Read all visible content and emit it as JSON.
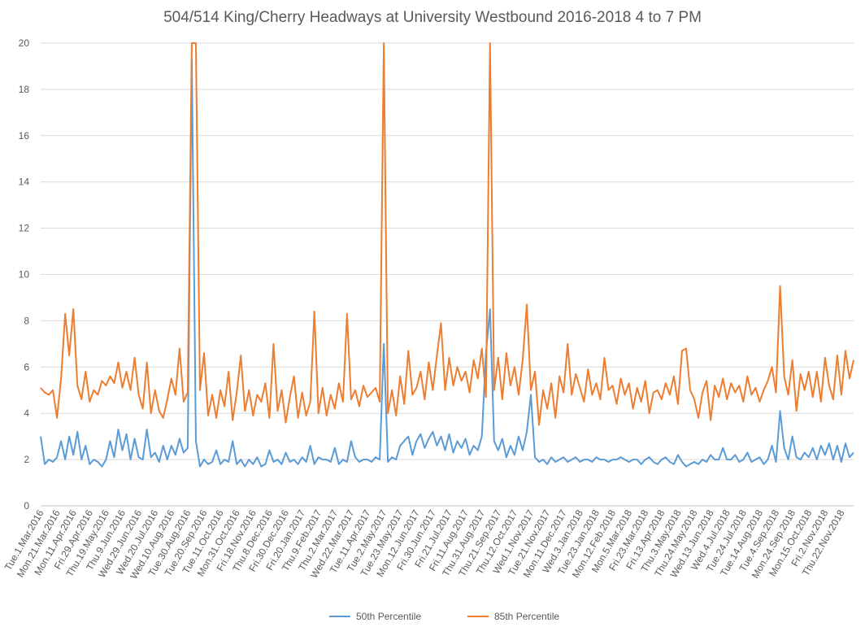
{
  "chart_data": {
    "type": "line",
    "title": "504/514 King/Cherry Headways at University Westbound 2016-2018 4 to 7 PM",
    "categories": [
      "Tue.1.Mar.2016",
      null,
      null,
      null,
      "Mon.21.Mar.2016",
      null,
      null,
      null,
      "Mon.11.Apr.2016",
      null,
      null,
      null,
      "Fri.29.Apr.2016",
      null,
      null,
      null,
      "Thu.19.May.2016",
      null,
      null,
      null,
      "Thu.9.Jun.2016",
      null,
      null,
      null,
      "Wed.29.Jun.2016",
      null,
      null,
      null,
      "Wed.20.Jul.2016",
      null,
      null,
      null,
      "Wed.10.Aug.2016",
      null,
      null,
      null,
      "Tue.30.Aug.2016",
      null,
      null,
      null,
      "Tue.20.Sep.2016",
      null,
      null,
      null,
      "Tue.11.Oct.2016",
      null,
      null,
      null,
      "Mon.31.Oct.2016",
      null,
      null,
      null,
      "Fri.18.Nov.2016",
      null,
      null,
      null,
      "Thu.8.Dec.2016",
      null,
      null,
      null,
      "Fri.30.Dec.2016",
      null,
      null,
      null,
      "Fri.20.Jan.2017",
      null,
      null,
      null,
      "Thu.9.Feb.2017",
      null,
      null,
      null,
      "Thu.2.Mar.2017",
      null,
      null,
      null,
      "Wed.22.Mar.2017",
      null,
      null,
      null,
      "Tue.11.Apr.2017",
      null,
      null,
      null,
      "Tue.2.May.2017",
      null,
      null,
      null,
      "Tue.23.May.2017",
      null,
      null,
      null,
      "Mon.12.Jun.2017",
      null,
      null,
      null,
      "Fri.30.Jun.2017",
      null,
      null,
      null,
      "Fri.21.Jul.2017",
      null,
      null,
      null,
      "Fri.11.Aug.2017",
      null,
      null,
      null,
      "Thu.31.Aug.2017",
      null,
      null,
      null,
      "Thu.21.Sep.2017",
      null,
      null,
      null,
      "Thu.12.Oct.2017",
      null,
      null,
      null,
      "Wed.1.Nov.2017",
      null,
      null,
      null,
      "Tue.21.Nov.2017",
      null,
      null,
      null,
      "Mon.11.Dec.2017",
      null,
      null,
      null,
      "Wed.3.Jan.2018",
      null,
      null,
      null,
      "Tue.23.Jan.2018",
      null,
      null,
      null,
      "Mon.12.Feb.2018",
      null,
      null,
      null,
      "Mon.5.Mar.2018",
      null,
      null,
      null,
      "Fri.23.Mar.2018",
      null,
      null,
      null,
      "Fri.13.Apr.2018",
      null,
      null,
      null,
      "Thu.3.May.2018",
      null,
      null,
      null,
      "Thu.24.May.2018",
      null,
      null,
      null,
      "Wed.13.Jun.2018",
      null,
      null,
      null,
      "Wed.4.Jul.2018",
      null,
      null,
      null,
      "Tue.24.Jul.2018",
      null,
      null,
      null,
      "Tue.14.Aug.2018",
      null,
      null,
      null,
      "Tue.4.Sep.2018",
      null,
      null,
      null,
      "Mon.24.Sep.2018",
      null,
      null,
      null,
      "Mon.15.Oct.2018",
      null,
      null,
      null,
      "Fri.2.Nov.2018",
      null,
      null,
      null,
      "Thu.22.Nov.2018",
      null,
      null,
      null
    ],
    "series": [
      {
        "name": "50th Percentile",
        "color": "#5b9bd5",
        "values": [
          3.0,
          1.8,
          2.0,
          1.9,
          2.1,
          2.8,
          2.0,
          3.0,
          2.2,
          3.2,
          2.0,
          2.6,
          1.8,
          2.0,
          1.9,
          1.7,
          2.0,
          2.8,
          2.1,
          3.3,
          2.4,
          3.1,
          2.0,
          2.9,
          2.1,
          2.0,
          3.3,
          2.1,
          2.3,
          1.9,
          2.6,
          2.0,
          2.6,
          2.2,
          2.9,
          2.3,
          2.5,
          19.3,
          2.8,
          1.7,
          2.0,
          1.8,
          1.9,
          2.4,
          1.8,
          2.0,
          1.9,
          2.8,
          1.8,
          2.0,
          1.7,
          2.0,
          1.8,
          2.1,
          1.7,
          1.8,
          2.4,
          1.9,
          2.0,
          1.8,
          2.3,
          1.9,
          2.0,
          1.8,
          2.1,
          1.9,
          2.6,
          1.8,
          2.1,
          2.0,
          2.0,
          1.9,
          2.5,
          1.8,
          2.0,
          1.9,
          2.8,
          2.1,
          1.9,
          2.0,
          2.0,
          1.9,
          2.1,
          2.0,
          7.0,
          1.9,
          2.1,
          2.0,
          2.6,
          2.8,
          3.0,
          2.2,
          2.8,
          3.1,
          2.5,
          2.9,
          3.2,
          2.6,
          3.0,
          2.4,
          3.1,
          2.3,
          2.8,
          2.5,
          2.9,
          2.2,
          2.6,
          2.4,
          3.0,
          6.6,
          8.5,
          2.8,
          2.4,
          2.9,
          2.1,
          2.6,
          2.2,
          3.0,
          2.4,
          3.2,
          4.8,
          2.1,
          1.9,
          2.0,
          1.8,
          2.1,
          1.9,
          2.0,
          2.1,
          1.9,
          2.0,
          2.1,
          1.9,
          2.0,
          2.0,
          1.9,
          2.1,
          2.0,
          2.0,
          1.9,
          2.0,
          2.0,
          2.1,
          2.0,
          1.9,
          2.0,
          2.0,
          1.8,
          2.0,
          2.1,
          1.9,
          1.8,
          2.0,
          2.1,
          1.9,
          1.8,
          2.2,
          1.9,
          1.7,
          1.8,
          1.9,
          1.8,
          2.0,
          1.9,
          2.2,
          2.0,
          2.0,
          2.5,
          2.0,
          2.0,
          2.2,
          1.9,
          2.0,
          2.3,
          1.9,
          2.0,
          2.1,
          1.8,
          2.0,
          2.6,
          1.9,
          4.1,
          2.5,
          2.0,
          3.0,
          2.1,
          2.0,
          2.3,
          2.1,
          2.5,
          2.0,
          2.6,
          2.2,
          2.7,
          2.0,
          2.6,
          1.9,
          2.7,
          2.1,
          2.3
        ]
      },
      {
        "name": "85th Percentile",
        "color": "#ed7d31",
        "values": [
          5.1,
          4.9,
          4.8,
          5.0,
          3.8,
          5.5,
          8.3,
          6.5,
          8.5,
          5.2,
          4.6,
          5.8,
          4.5,
          5.0,
          4.8,
          5.4,
          5.2,
          5.6,
          5.3,
          6.2,
          5.1,
          5.8,
          5.0,
          6.4,
          4.8,
          4.2,
          6.2,
          4.0,
          5.0,
          4.1,
          3.8,
          4.6,
          5.5,
          4.8,
          6.8,
          4.5,
          4.9,
          20,
          20,
          5.0,
          6.6,
          3.9,
          4.8,
          3.8,
          5.0,
          4.3,
          5.8,
          3.7,
          4.9,
          6.5,
          4.1,
          5.0,
          3.9,
          4.8,
          4.5,
          5.3,
          3.8,
          7.0,
          4.1,
          5.0,
          3.6,
          4.7,
          5.6,
          3.8,
          4.9,
          3.9,
          4.5,
          8.4,
          4.0,
          5.1,
          3.9,
          4.8,
          4.2,
          5.3,
          4.5,
          8.3,
          4.6,
          5.0,
          4.3,
          5.2,
          4.7,
          4.9,
          5.1,
          4.5,
          20,
          4.0,
          5.0,
          3.9,
          5.6,
          4.4,
          6.7,
          4.8,
          5.1,
          5.8,
          4.6,
          6.2,
          5.0,
          6.5,
          7.9,
          5.0,
          6.4,
          5.2,
          6.0,
          5.4,
          5.8,
          4.9,
          6.3,
          5.5,
          6.8,
          4.7,
          20,
          5.0,
          6.4,
          4.6,
          6.6,
          5.2,
          6.0,
          4.8,
          6.3,
          8.7,
          5.0,
          5.8,
          3.5,
          5.0,
          4.2,
          5.3,
          3.8,
          5.6,
          4.9,
          7.0,
          4.8,
          5.7,
          5.1,
          4.5,
          5.9,
          4.8,
          5.3,
          4.6,
          6.4,
          5.0,
          5.2,
          4.4,
          5.5,
          4.8,
          5.3,
          4.2,
          5.1,
          4.5,
          5.4,
          4.0,
          4.9,
          5.0,
          4.6,
          5.3,
          4.8,
          5.6,
          4.4,
          6.7,
          6.8,
          5.0,
          4.6,
          3.8,
          4.9,
          5.4,
          3.7,
          5.2,
          4.7,
          5.5,
          4.6,
          5.3,
          4.9,
          5.2,
          4.5,
          5.6,
          4.8,
          5.1,
          4.5,
          5.0,
          5.4,
          6.0,
          4.9,
          9.5,
          5.6,
          4.8,
          6.3,
          4.1,
          5.7,
          5.0,
          5.8,
          4.7,
          5.8,
          4.5,
          6.4,
          5.2,
          4.6,
          6.5,
          4.8,
          6.7,
          5.5,
          6.3
        ]
      }
    ],
    "ylim": [
      0,
      20
    ],
    "yticks": [
      0,
      2,
      4,
      6,
      8,
      10,
      12,
      14,
      16,
      18,
      20
    ],
    "grid": true,
    "legend": "bottom"
  }
}
